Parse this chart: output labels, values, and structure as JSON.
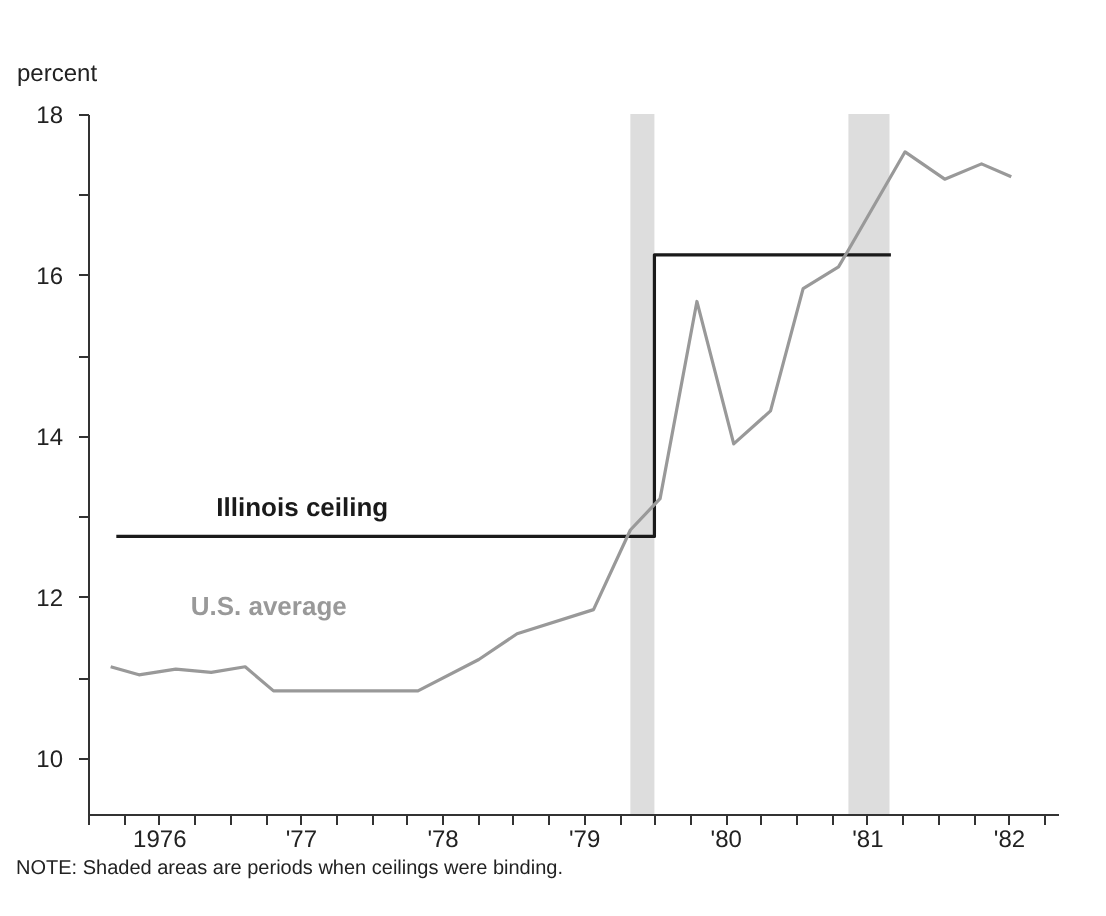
{
  "chart_data": {
    "type": "line",
    "ylabel": "percent",
    "annotations": [
      "NOTE: Shaded areas are periods when ceilings were binding."
    ],
    "xlim": [
      1975.5,
      1982.35
    ],
    "ylim": [
      9.3,
      18
    ],
    "xticks": [
      {
        "value": 1975.5,
        "label": null
      },
      {
        "value": 1975.75,
        "label": null
      },
      {
        "value": 1976,
        "label": "1976"
      },
      {
        "value": 1976.25,
        "label": null
      },
      {
        "value": 1976.5,
        "label": null
      },
      {
        "value": 1976.75,
        "label": null
      },
      {
        "value": 1977,
        "label": "'77"
      },
      {
        "value": 1977.25,
        "label": null
      },
      {
        "value": 1977.5,
        "label": null
      },
      {
        "value": 1977.75,
        "label": null
      },
      {
        "value": 1978,
        "label": "'78"
      },
      {
        "value": 1978.25,
        "label": null
      },
      {
        "value": 1978.5,
        "label": null
      },
      {
        "value": 1978.75,
        "label": null
      },
      {
        "value": 1979,
        "label": "'79"
      },
      {
        "value": 1979.25,
        "label": null
      },
      {
        "value": 1979.5,
        "label": null
      },
      {
        "value": 1979.75,
        "label": null
      },
      {
        "value": 1980,
        "label": "'80"
      },
      {
        "value": 1980.25,
        "label": null
      },
      {
        "value": 1980.5,
        "label": null
      },
      {
        "value": 1980.75,
        "label": null
      },
      {
        "value": 1981,
        "label": "'81"
      },
      {
        "value": 1981.25,
        "label": null
      },
      {
        "value": 1981.5,
        "label": null
      },
      {
        "value": 1981.75,
        "label": null
      },
      {
        "value": 1982,
        "label": "'82"
      },
      {
        "value": 1982.25,
        "label": null
      }
    ],
    "yticks": [
      10,
      {
        "value": 11,
        "label": null
      },
      12,
      {
        "value": 13,
        "label": null
      },
      14,
      {
        "value": 15,
        "label": null
      },
      16,
      {
        "value": 17,
        "label": null
      },
      18
    ],
    "grid": false,
    "legend": false,
    "marker": "none",
    "line_style": "solid",
    "bands": [
      {
        "axis": "x",
        "from": 1979.33,
        "to": 1979.5,
        "color": "#dddddd"
      },
      {
        "axis": "x",
        "from": 1980.87,
        "to": 1981.16,
        "color": "#dddddd"
      }
    ],
    "series": [
      {
        "name": "Illinois ceiling",
        "type": "step",
        "color": "#1a1a1a",
        "x": [
          1975.7,
          1979.5,
          1981.17
        ],
        "values": [
          12.75,
          16.25,
          16.25
        ]
      },
      {
        "name": "U.S. average",
        "type": "line",
        "color": "#999999",
        "x": [
          1975.66,
          1975.86,
          1976.12,
          1976.37,
          1976.61,
          1976.81,
          1977.83,
          1978.26,
          1978.53,
          1979.07,
          1979.33,
          1979.54,
          1979.8,
          1980.06,
          1980.32,
          1980.55,
          1980.8,
          1980.87,
          1981.27,
          1981.55,
          1981.81,
          1982.02
        ],
        "values": [
          11.13,
          11.03,
          11.1,
          11.06,
          11.13,
          10.83,
          10.83,
          11.22,
          11.54,
          11.84,
          12.83,
          13.22,
          15.67,
          13.9,
          14.31,
          15.83,
          16.1,
          16.31,
          17.53,
          17.19,
          17.38,
          17.22
        ]
      }
    ]
  }
}
